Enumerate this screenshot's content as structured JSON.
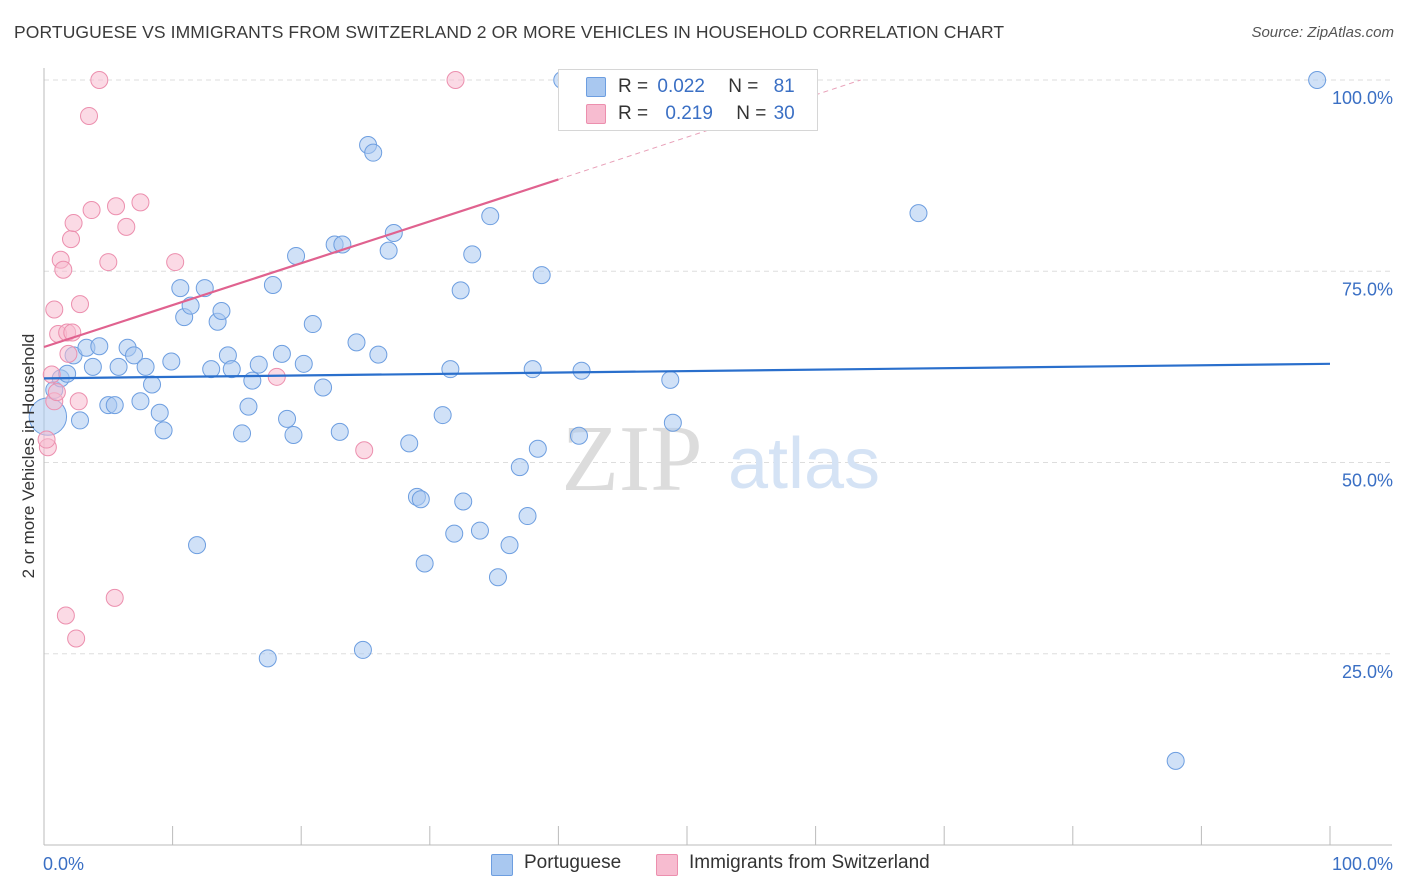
{
  "title": "PORTUGUESE VS IMMIGRANTS FROM SWITZERLAND 2 OR MORE VEHICLES IN HOUSEHOLD CORRELATION CHART",
  "source": "Source: ZipAtlas.com",
  "watermark": {
    "zip": "ZIP",
    "atlas": "atlas"
  },
  "legend_top": {
    "rows": [
      {
        "r_label": "R =",
        "r_value": "0.022",
        "n_label": "N =",
        "n_value": "81"
      },
      {
        "r_label": "R =",
        "r_value": "0.219",
        "n_label": "N =",
        "n_value": "30"
      }
    ]
  },
  "legend_bottom": {
    "series1": "Portuguese",
    "series2": "Immigrants from Switzerland"
  },
  "colors": {
    "blue_fill": "#a9c8f0",
    "blue_stroke": "#6d9ee0",
    "blue_line": "#2a6fcc",
    "pink_fill": "#f7bcd0",
    "pink_stroke": "#ec8fae",
    "pink_line": "#e0628f",
    "tick_label": "#3a6fc4",
    "grid": "#dddddd"
  },
  "chart_data": {
    "type": "scatter",
    "title": "PORTUGUESE VS IMMIGRANTS FROM SWITZERLAND 2 OR MORE VEHICLES IN HOUSEHOLD CORRELATION CHART",
    "xlabel": "",
    "ylabel": "2 or more Vehicles in Household",
    "xlim": [
      0,
      100
    ],
    "ylim": [
      0,
      100
    ],
    "x_tick_labels": {
      "left": "0.0%",
      "right": "100.0%"
    },
    "y_ticks": [
      {
        "value": 25,
        "label": "25.0%"
      },
      {
        "value": 50,
        "label": "50.0%"
      },
      {
        "value": 75,
        "label": "75.0%"
      },
      {
        "value": 100,
        "label": "100.0%"
      }
    ],
    "series": [
      {
        "name": "Portuguese",
        "color": "#a9c8f0",
        "stats": {
          "R": 0.022,
          "N": 81
        },
        "trend": {
          "x": [
            0,
            100
          ],
          "y": [
            61.0,
            62.9
          ]
        },
        "points": [
          [
            0.3,
            56.0,
            2.2
          ],
          [
            0.8,
            59.5,
            1
          ],
          [
            1.3,
            61.0,
            1
          ],
          [
            1.8,
            61.6,
            1
          ],
          [
            2.3,
            64.0,
            1
          ],
          [
            2.8,
            55.5,
            1
          ],
          [
            3.3,
            65.0,
            1
          ],
          [
            3.8,
            62.5,
            1
          ],
          [
            4.3,
            65.2,
            1
          ],
          [
            5.0,
            57.5,
            1
          ],
          [
            5.5,
            57.5,
            1
          ],
          [
            5.8,
            62.5,
            1
          ],
          [
            6.5,
            65.0,
            1
          ],
          [
            7.0,
            64.0,
            1
          ],
          [
            7.5,
            58.0,
            1
          ],
          [
            7.9,
            62.5,
            1
          ],
          [
            8.4,
            60.2,
            1
          ],
          [
            9.0,
            56.5,
            1
          ],
          [
            9.3,
            54.2,
            1
          ],
          [
            9.9,
            63.2,
            1
          ],
          [
            10.6,
            72.8,
            1
          ],
          [
            10.9,
            69.0,
            1
          ],
          [
            11.4,
            70.5,
            1
          ],
          [
            11.9,
            39.2,
            1
          ],
          [
            12.5,
            72.8,
            1
          ],
          [
            13.0,
            62.2,
            1
          ],
          [
            13.5,
            68.4,
            1
          ],
          [
            13.8,
            69.8,
            1
          ],
          [
            14.3,
            64.0,
            1
          ],
          [
            14.6,
            62.2,
            1
          ],
          [
            15.4,
            53.8,
            1
          ],
          [
            15.9,
            57.3,
            1
          ],
          [
            16.2,
            60.7,
            1
          ],
          [
            16.7,
            62.8,
            1
          ],
          [
            17.4,
            24.4,
            1
          ],
          [
            17.8,
            73.2,
            1
          ],
          [
            18.5,
            64.2,
            1
          ],
          [
            18.9,
            55.7,
            1
          ],
          [
            19.4,
            53.6,
            1
          ],
          [
            19.6,
            77.0,
            1
          ],
          [
            20.2,
            62.9,
            1
          ],
          [
            20.9,
            68.1,
            1
          ],
          [
            21.7,
            59.8,
            1
          ],
          [
            22.6,
            78.5,
            1
          ],
          [
            23.0,
            54.0,
            1
          ],
          [
            23.2,
            78.5,
            1
          ],
          [
            24.3,
            65.7,
            1
          ],
          [
            24.8,
            25.5,
            1
          ],
          [
            25.2,
            91.5,
            1
          ],
          [
            25.6,
            90.5,
            1
          ],
          [
            26.0,
            64.1,
            1
          ],
          [
            26.8,
            77.7,
            1
          ],
          [
            27.2,
            80.0,
            1
          ],
          [
            28.4,
            52.5,
            1
          ],
          [
            29.0,
            45.5,
            1
          ],
          [
            29.3,
            45.2,
            1
          ],
          [
            29.6,
            36.8,
            1
          ],
          [
            31.0,
            56.2,
            1
          ],
          [
            31.6,
            62.2,
            1
          ],
          [
            31.9,
            40.7,
            1
          ],
          [
            32.4,
            72.5,
            1
          ],
          [
            32.6,
            44.9,
            1
          ],
          [
            33.3,
            77.2,
            1
          ],
          [
            33.9,
            41.1,
            1
          ],
          [
            34.7,
            82.2,
            1
          ],
          [
            35.3,
            35.0,
            1
          ],
          [
            36.2,
            39.2,
            1
          ],
          [
            37.0,
            49.4,
            1
          ],
          [
            37.6,
            43.0,
            1
          ],
          [
            38.0,
            62.2,
            1
          ],
          [
            38.4,
            51.8,
            1
          ],
          [
            38.7,
            74.5,
            1
          ],
          [
            40.3,
            100.0,
            1
          ],
          [
            41.6,
            53.5,
            1
          ],
          [
            41.8,
            62.0,
            1
          ],
          [
            48.7,
            60.8,
            1
          ],
          [
            48.9,
            55.2,
            1
          ],
          [
            68.0,
            82.6,
            1
          ],
          [
            88.0,
            11.0,
            1
          ],
          [
            99.0,
            100.0,
            1
          ]
        ]
      },
      {
        "name": "Immigrants from Switzerland",
        "color": "#f7bcd0",
        "stats": {
          "R": 0.219,
          "N": 30
        },
        "trend": {
          "x": [
            0,
            40
          ],
          "y": [
            65.1,
            87.0
          ],
          "dashed_x": [
            40,
            63.5
          ],
          "dashed_y": [
            87.0,
            100.0
          ]
        },
        "points": [
          [
            0.3,
            52.0,
            1
          ],
          [
            0.6,
            61.5,
            1
          ],
          [
            0.8,
            58.0,
            1
          ],
          [
            0.8,
            70.0,
            1
          ],
          [
            1.0,
            59.2,
            1
          ],
          [
            1.1,
            66.8,
            1
          ],
          [
            1.3,
            76.5,
            1
          ],
          [
            1.5,
            75.2,
            1
          ],
          [
            1.7,
            30.0,
            1
          ],
          [
            1.8,
            67.0,
            1
          ],
          [
            1.9,
            64.2,
            1
          ],
          [
            2.1,
            79.2,
            1
          ],
          [
            2.2,
            67.0,
            1
          ],
          [
            2.3,
            81.3,
            1
          ],
          [
            2.5,
            27.0,
            1
          ],
          [
            2.7,
            58.0,
            1
          ],
          [
            2.8,
            70.7,
            1
          ],
          [
            3.5,
            95.3,
            1
          ],
          [
            3.7,
            83.0,
            1
          ],
          [
            4.3,
            100.0,
            1
          ],
          [
            5.0,
            76.2,
            1
          ],
          [
            5.5,
            32.3,
            1
          ],
          [
            5.6,
            83.5,
            1
          ],
          [
            6.4,
            80.8,
            1
          ],
          [
            7.5,
            84.0,
            1
          ],
          [
            10.2,
            76.2,
            1
          ],
          [
            18.1,
            61.2,
            1
          ],
          [
            24.9,
            51.6,
            1
          ],
          [
            32.0,
            100.0,
            1
          ],
          [
            0.2,
            53.0,
            1
          ]
        ]
      }
    ]
  }
}
